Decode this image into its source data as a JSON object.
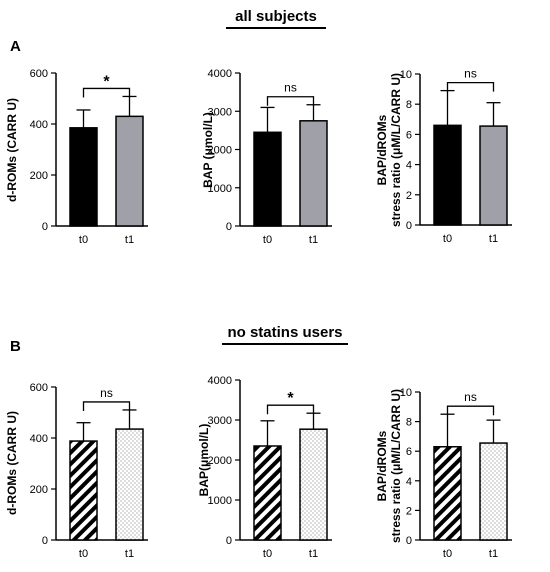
{
  "sections": [
    {
      "letter": "A",
      "title": "all subjects"
    },
    {
      "letter": "B",
      "title": "no statins users"
    }
  ],
  "chart_data": [
    {
      "type": "bar",
      "section": "all subjects",
      "categories": [
        "t0",
        "t1"
      ],
      "values": [
        385,
        430
      ],
      "errors": [
        70,
        78
      ],
      "ylabel": "d-ROMs (CARR U)",
      "ylim": [
        0,
        600
      ],
      "yticks": [
        0,
        200,
        400,
        600
      ],
      "significance": "*",
      "fill_style": [
        "solid-black",
        "solid-gray"
      ]
    },
    {
      "type": "bar",
      "section": "all subjects",
      "categories": [
        "t0",
        "t1"
      ],
      "values": [
        2450,
        2750
      ],
      "errors": [
        650,
        420
      ],
      "ylabel": "BAP (μmol/L)",
      "ylim": [
        0,
        4000
      ],
      "yticks": [
        0,
        1000,
        2000,
        3000,
        4000
      ],
      "significance": "ns",
      "fill_style": [
        "solid-black",
        "solid-gray"
      ]
    },
    {
      "type": "bar",
      "section": "all subjects",
      "categories": [
        "t0",
        "t1"
      ],
      "values": [
        6.6,
        6.55
      ],
      "errors": [
        2.3,
        1.55
      ],
      "ylabel": [
        "BAP/dROMs",
        "stress ratio (μM/L/CARR U)"
      ],
      "ylim": [
        0,
        10
      ],
      "yticks": [
        0,
        2,
        4,
        6,
        8,
        10
      ],
      "significance": "ns",
      "fill_style": [
        "solid-black",
        "solid-gray"
      ]
    },
    {
      "type": "bar",
      "section": "no statins users",
      "categories": [
        "t0",
        "t1"
      ],
      "values": [
        388,
        435
      ],
      "errors": [
        72,
        75
      ],
      "ylabel": "d-ROMs (CARR U)",
      "ylim": [
        0,
        600
      ],
      "yticks": [
        0,
        200,
        400,
        600
      ],
      "significance": "ns",
      "fill_style": [
        "hatched",
        "dotted"
      ]
    },
    {
      "type": "bar",
      "section": "no statins users",
      "categories": [
        "t0",
        "t1"
      ],
      "values": [
        2350,
        2770
      ],
      "errors": [
        630,
        400
      ],
      "ylabel": "BAP(μmol/L)",
      "ylim": [
        0,
        4000
      ],
      "yticks": [
        0,
        1000,
        2000,
        3000,
        4000
      ],
      "significance": "*",
      "fill_style": [
        "hatched",
        "dotted"
      ]
    },
    {
      "type": "bar",
      "section": "no statins users",
      "categories": [
        "t0",
        "t1"
      ],
      "values": [
        6.3,
        6.55
      ],
      "errors": [
        2.2,
        1.55
      ],
      "ylabel": [
        "BAP/dROMs",
        "stress ratio (μM/L/CARR U)"
      ],
      "ylim": [
        0,
        10
      ],
      "yticks": [
        0,
        2,
        4,
        6,
        8,
        10
      ],
      "significance": "ns",
      "fill_style": [
        "hatched",
        "dotted"
      ]
    }
  ]
}
